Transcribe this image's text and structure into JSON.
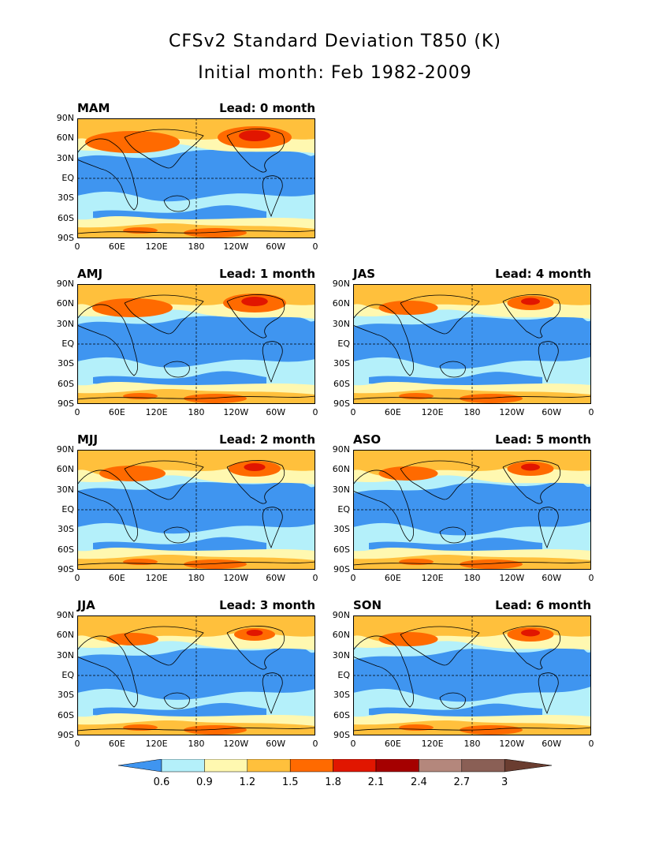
{
  "title": "CFSv2 Standard Deviation T850 (K)",
  "subtitle": "Initial month: Feb 1982-2009",
  "panels": [
    {
      "season": "MAM",
      "lead": "Lead: 0 month"
    },
    {
      "season": "AMJ",
      "lead": "Lead: 1 month"
    },
    {
      "season": "MJJ",
      "lead": "Lead: 2 month"
    },
    {
      "season": "JJA",
      "lead": "Lead: 3 month"
    },
    {
      "season": "JAS",
      "lead": "Lead: 4 month"
    },
    {
      "season": "ASO",
      "lead": "Lead: 5 month"
    },
    {
      "season": "SON",
      "lead": "Lead: 6 month"
    }
  ],
  "lat_ticks": [
    "90N",
    "60N",
    "30N",
    "EQ",
    "30S",
    "60S",
    "90S"
  ],
  "lon_ticks": [
    "0",
    "60E",
    "120E",
    "180",
    "120W",
    "60W",
    "0"
  ],
  "colorbar": {
    "labels": [
      "0.6",
      "0.9",
      "1.2",
      "1.5",
      "1.8",
      "2.1",
      "2.4",
      "2.7",
      "3"
    ],
    "colors": [
      "#3f95f0",
      "#b4f0fa",
      "#fff8b0",
      "#ffc03c",
      "#ff6a00",
      "#e11600",
      "#a50000",
      "#b4877c",
      "#8a5f55",
      "#6a3d30"
    ]
  }
}
